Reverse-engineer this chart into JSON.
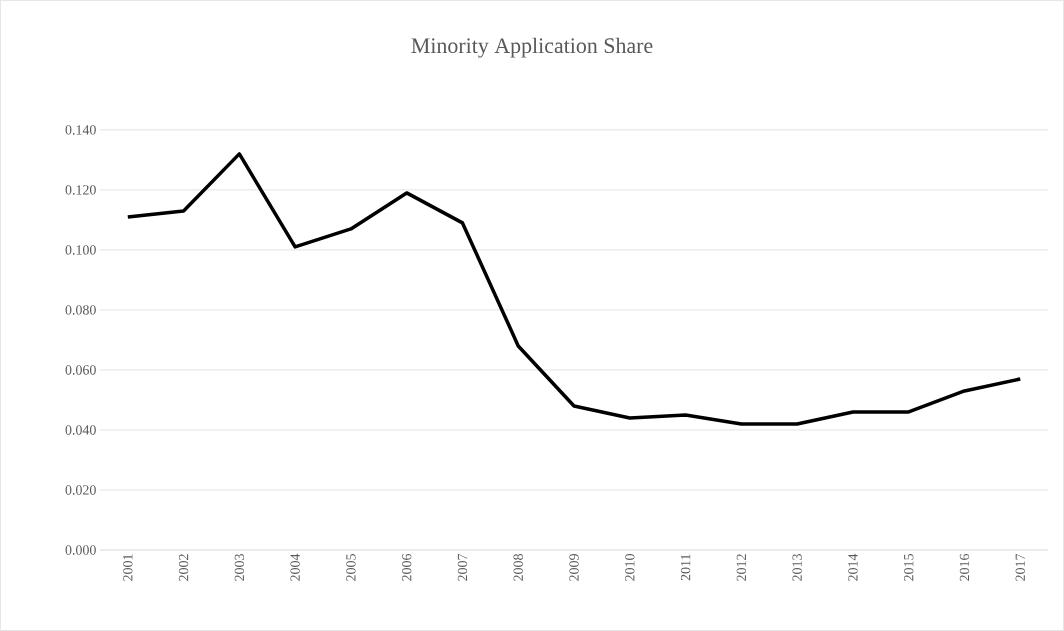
{
  "chart_data": {
    "type": "line",
    "title": "Minority Application Share",
    "categories": [
      "2001",
      "2002",
      "2003",
      "2004",
      "2005",
      "2006",
      "2007",
      "2008",
      "2009",
      "2010",
      "2011",
      "2012",
      "2013",
      "2014",
      "2015",
      "2016",
      "2017"
    ],
    "series": [
      {
        "color": "#000000",
        "values": [
          0.111,
          0.113,
          0.132,
          0.101,
          0.107,
          0.119,
          0.109,
          0.068,
          0.048,
          0.044,
          0.045,
          0.042,
          0.042,
          0.046,
          0.046,
          0.053,
          0.057
        ]
      }
    ],
    "ylim": [
      0,
      0.14
    ],
    "yticks": [
      {
        "value": 0,
        "label": "0.000"
      },
      {
        "value": 0.02,
        "label": "0.020"
      },
      {
        "value": 0.04,
        "label": "0.040"
      },
      {
        "value": 0.06,
        "label": "0.060"
      },
      {
        "value": 0.08,
        "label": "0.080"
      },
      {
        "value": 0.1,
        "label": "0.100"
      },
      {
        "value": 0.12,
        "label": "0.120"
      },
      {
        "value": 0.14,
        "label": "0.140"
      }
    ],
    "grid": "y",
    "marker": "none",
    "line_style": "solid",
    "legend": false
  }
}
